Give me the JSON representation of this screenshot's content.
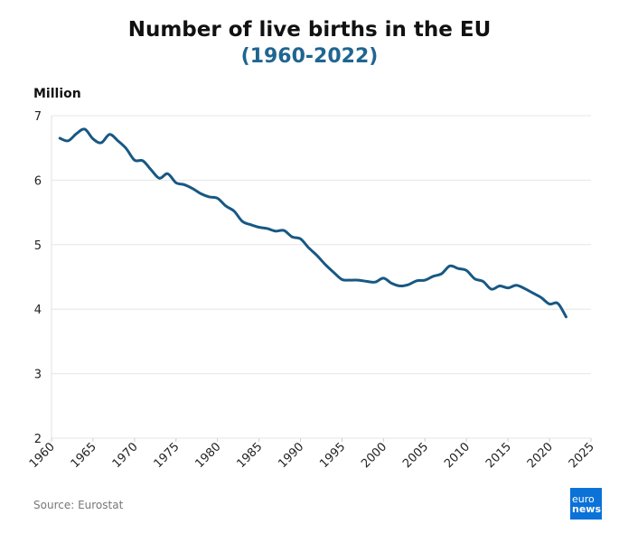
{
  "chart_data": {
    "type": "line",
    "title": "Number of live births in the EU",
    "subtitle": "(1960-2022)",
    "ylabel": "Million",
    "xlabel": "",
    "ylim": [
      2,
      7
    ],
    "xlim": [
      1960,
      2025
    ],
    "y_ticks": [
      "2",
      "3",
      "4",
      "5",
      "6",
      "7"
    ],
    "x_ticks": [
      "1960",
      "1965",
      "1970",
      "1975",
      "1980",
      "1985",
      "1990",
      "1995",
      "2000",
      "2005",
      "2010",
      "2015",
      "2020",
      "2025"
    ],
    "grid": true,
    "line_color": "#185883",
    "x": [
      1961,
      1962,
      1963,
      1964,
      1965,
      1966,
      1967,
      1968,
      1969,
      1970,
      1971,
      1972,
      1973,
      1974,
      1975,
      1976,
      1977,
      1978,
      1979,
      1980,
      1981,
      1982,
      1983,
      1984,
      1985,
      1986,
      1987,
      1988,
      1989,
      1990,
      1991,
      1992,
      1993,
      1994,
      1995,
      1996,
      1997,
      1998,
      1999,
      2000,
      2001,
      2002,
      2003,
      2004,
      2005,
      2006,
      2007,
      2008,
      2009,
      2010,
      2011,
      2012,
      2013,
      2014,
      2015,
      2016,
      2017,
      2018,
      2019,
      2020,
      2021,
      2022
    ],
    "series": [
      {
        "values": [
          6.65,
          6.61,
          6.72,
          6.79,
          6.64,
          6.58,
          6.71,
          6.61,
          6.49,
          6.31,
          6.3,
          6.16,
          6.03,
          6.1,
          5.96,
          5.93,
          5.87,
          5.79,
          5.74,
          5.72,
          5.6,
          5.52,
          5.36,
          5.31,
          5.27,
          5.25,
          5.21,
          5.22,
          5.12,
          5.09,
          4.95,
          4.83,
          4.69,
          4.57,
          4.46,
          4.45,
          4.45,
          4.43,
          4.42,
          4.48,
          4.4,
          4.36,
          4.38,
          4.44,
          4.45,
          4.51,
          4.55,
          4.67,
          4.63,
          4.6,
          4.47,
          4.43,
          4.31,
          4.36,
          4.33,
          4.37,
          4.32,
          4.25,
          4.18,
          4.08,
          4.09,
          3.88
        ]
      }
    ]
  },
  "source": "Source: Eurostat",
  "logo": {
    "line1": "euro",
    "line2": "news.",
    "color": "#0b72d8"
  }
}
